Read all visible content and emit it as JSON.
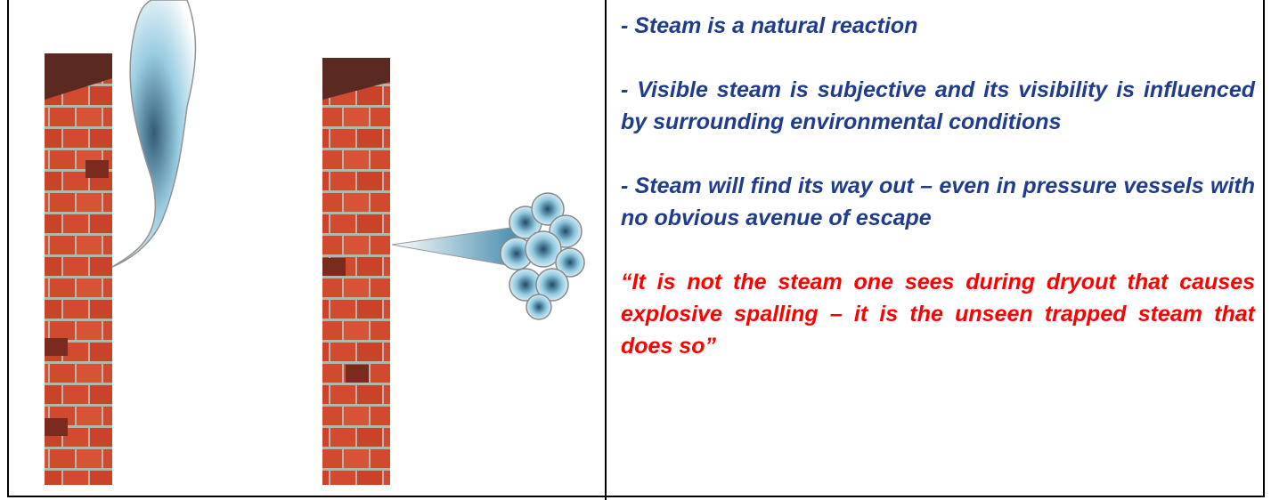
{
  "points": [
    "- Steam is a natural reaction",
    "- Visible steam is subjective and its visibility is influenced by surrounding environmental conditions",
    "- Steam will find its way out – even in pressure vessels with no obvious avenue of escape"
  ],
  "quote": "“It is not the steam one sees during dryout that causes explosive spalling – it is the unseen trapped steam that does so”"
}
